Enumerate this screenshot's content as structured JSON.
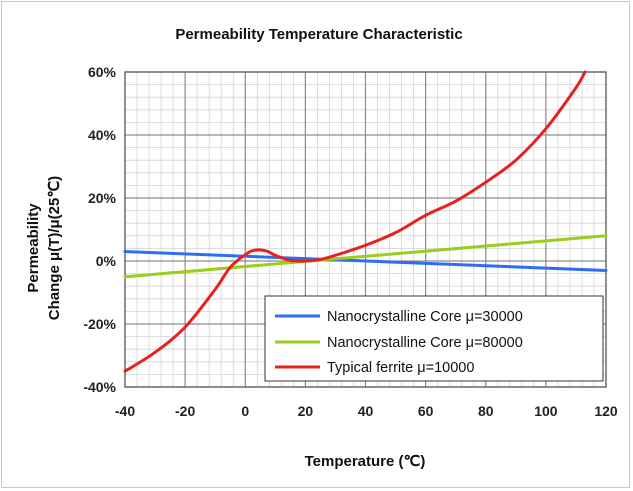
{
  "chart_data": {
    "type": "line",
    "title": "Permeability Temperature Characteristic",
    "xlabel": "Temperature (℃)",
    "ylabel_line1": "Permeability",
    "ylabel_line2": "Change μ(T)/μ(25℃)",
    "xlim": [
      -40,
      120
    ],
    "ylim": [
      -40,
      60
    ],
    "x_ticks": [
      -40,
      -20,
      0,
      20,
      40,
      60,
      80,
      100,
      120
    ],
    "x_tick_labels": [
      "-40",
      "-20",
      "0",
      "20",
      "40",
      "60",
      "80",
      "100",
      "120"
    ],
    "y_ticks": [
      -40,
      -20,
      0,
      20,
      40,
      60
    ],
    "y_tick_labels": [
      "-40%",
      "-20%",
      "0%",
      "20%",
      "40%",
      "60%"
    ],
    "grid": true,
    "legend_position": "bottom-right",
    "series": [
      {
        "name": "Nanocrystalline Core μ=30000",
        "color": "#2e6ef2",
        "x": [
          -40,
          120
        ],
        "y": [
          3,
          -3
        ]
      },
      {
        "name": "Nanocrystalline Core μ=80000",
        "color": "#9ccc1c",
        "x": [
          -40,
          120
        ],
        "y": [
          -5,
          8
        ]
      },
      {
        "name": "Typical ferrite μ=10000",
        "color": "#e8211f",
        "x": [
          -40,
          -30,
          -20,
          -10,
          -5,
          0,
          3,
          7,
          10,
          15,
          20,
          25,
          30,
          40,
          50,
          60,
          70,
          80,
          90,
          100,
          110,
          113
        ],
        "y": [
          -35,
          -29,
          -21,
          -9,
          -2,
          2,
          3.4,
          3.2,
          1.8,
          0.2,
          0.0,
          0.5,
          1.8,
          5,
          9,
          14.5,
          19,
          25,
          32,
          42,
          55,
          60
        ]
      }
    ]
  }
}
